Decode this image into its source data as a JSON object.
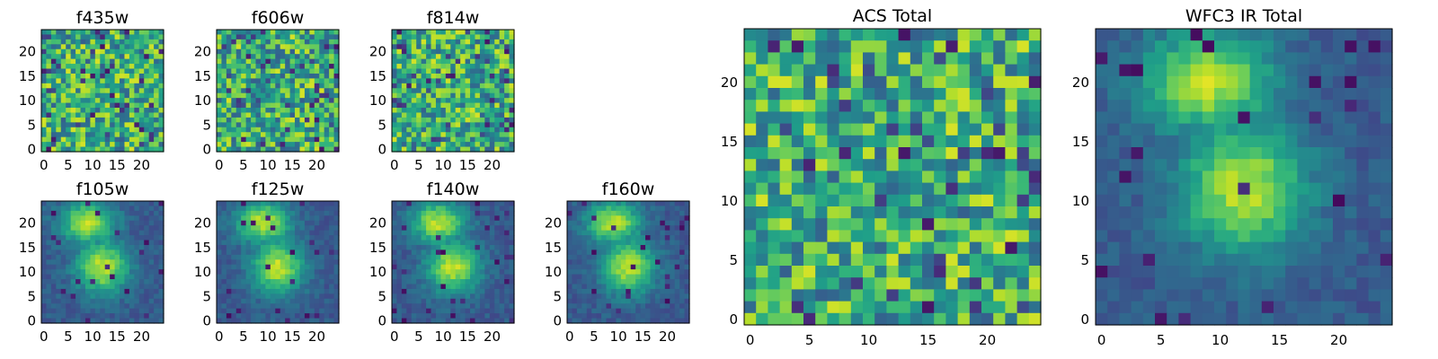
{
  "colormap": {
    "name": "viridis",
    "stops": [
      "#440154",
      "#482878",
      "#3e4a89",
      "#31688e",
      "#26828e",
      "#1f9e89",
      "#35b779",
      "#6ece58",
      "#b5de2b",
      "#fde725"
    ]
  },
  "figure": {
    "panels": [
      {
        "id": "f435w",
        "title": "f435w",
        "grid": 25,
        "pattern": "noise",
        "xticks": [
          "0",
          "5",
          "10",
          "15",
          "20"
        ],
        "yticks": [
          "0",
          "5",
          "10",
          "15",
          "20"
        ],
        "seed": 11
      },
      {
        "id": "f606w",
        "title": "f606w",
        "grid": 25,
        "pattern": "noise",
        "xticks": [
          "0",
          "5",
          "10",
          "15",
          "20"
        ],
        "yticks": [
          "0",
          "5",
          "10",
          "15",
          "20"
        ],
        "seed": 23
      },
      {
        "id": "f814w",
        "title": "f814w",
        "grid": 25,
        "pattern": "noise",
        "xticks": [
          "0",
          "5",
          "10",
          "15",
          "20"
        ],
        "yticks": [
          "0",
          "5",
          "10",
          "15",
          "20"
        ],
        "seed": 37
      },
      {
        "id": "f105w",
        "title": "f105w",
        "grid": 25,
        "pattern": "smooth",
        "xticks": [
          "0",
          "5",
          "10",
          "15",
          "20"
        ],
        "yticks": [
          "0",
          "5",
          "10",
          "15",
          "20"
        ],
        "seed": 41
      },
      {
        "id": "f125w",
        "title": "f125w",
        "grid": 25,
        "pattern": "smooth",
        "xticks": [
          "0",
          "5",
          "10",
          "15",
          "20"
        ],
        "yticks": [
          "0",
          "5",
          "10",
          "15",
          "20"
        ],
        "seed": 53
      },
      {
        "id": "f140w",
        "title": "f140w",
        "grid": 25,
        "pattern": "smooth",
        "xticks": [
          "0",
          "5",
          "10",
          "15",
          "20"
        ],
        "yticks": [
          "0",
          "5",
          "10",
          "15",
          "20"
        ],
        "seed": 67
      },
      {
        "id": "f160w",
        "title": "f160w",
        "grid": 25,
        "pattern": "smooth",
        "xticks": [
          "0",
          "5",
          "10",
          "15",
          "20"
        ],
        "yticks": [
          "0",
          "5",
          "10",
          "15",
          "20"
        ],
        "seed": 79
      },
      {
        "id": "acs-total",
        "title": "ACS Total",
        "grid": 25,
        "pattern": "noise",
        "xticks": [
          "0",
          "5",
          "10",
          "15",
          "20"
        ],
        "yticks": [
          "0",
          "5",
          "10",
          "15",
          "20"
        ],
        "seed": 97
      },
      {
        "id": "wfc3-ir-total",
        "title": "WFC3 IR Total",
        "grid": 25,
        "pattern": "smooth",
        "xticks": [
          "0",
          "5",
          "10",
          "15",
          "20"
        ],
        "yticks": [
          "0",
          "5",
          "10",
          "15",
          "20"
        ],
        "seed": 113
      }
    ]
  }
}
